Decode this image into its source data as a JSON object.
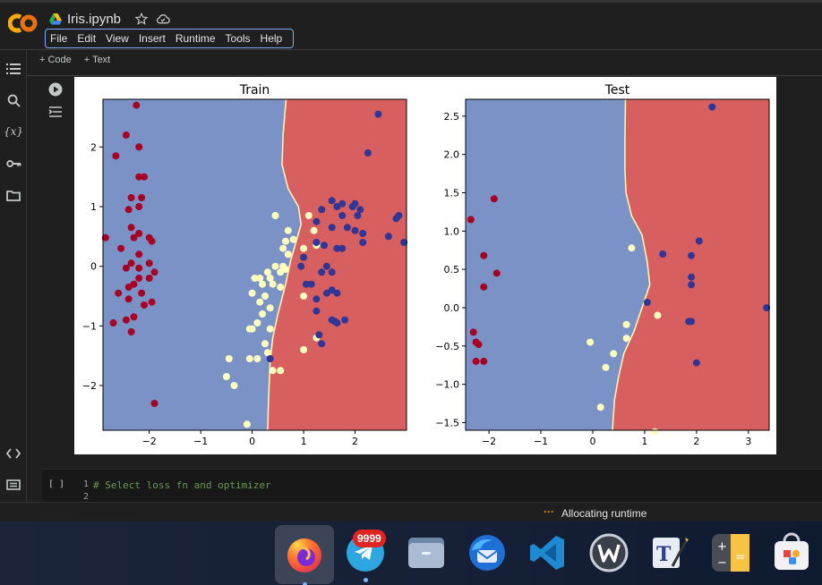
{
  "notebook": {
    "title": "Iris.ipynb"
  },
  "menu": [
    "File",
    "Edit",
    "View",
    "Insert",
    "Runtime",
    "Tools",
    "Help"
  ],
  "toolbar": {
    "code_label": "+ Code",
    "text_label": "+ Text"
  },
  "cell": {
    "run_indicator": "[ ]",
    "lines": [
      {
        "num": "1",
        "text": "# Select loss fn and optimizer"
      },
      {
        "num": "2",
        "text": ""
      }
    ]
  },
  "status": {
    "text": "Allocating runtime"
  },
  "taskbar": {
    "apps": [
      "firefox",
      "telegram",
      "files",
      "thunderbird",
      "vscode",
      "writer",
      "texstudio",
      "calculator",
      "software-store"
    ],
    "telegram_badge": "9999"
  },
  "colors": {
    "blue_region": "#7b92c6",
    "red_region": "#d75f5f",
    "class_0": "#a50026",
    "class_1": "#ffffbf",
    "class_2": "#313695",
    "accent": "#7cacf8",
    "boundary": "#fff2b0"
  },
  "chart_data": [
    {
      "type": "scatter",
      "title": "Train",
      "xlim": [
        -2.9,
        3.0
      ],
      "ylim": [
        -2.75,
        2.8
      ],
      "xticks": [
        "−2",
        "−1",
        "0",
        "1",
        "2"
      ],
      "xtick_values": [
        -2,
        -1,
        0,
        1,
        2
      ],
      "yticks": [
        "−2",
        "−1",
        "0",
        "1",
        "2"
      ],
      "ytick_values": [
        -2,
        -1,
        0,
        1,
        2
      ],
      "boundary": [
        [
          0.66,
          2.8
        ],
        [
          0.6,
          2.2
        ],
        [
          0.58,
          1.7
        ],
        [
          0.7,
          1.3
        ],
        [
          0.9,
          1.0
        ],
        [
          0.95,
          0.7
        ],
        [
          0.85,
          0.4
        ],
        [
          0.75,
          0.1
        ],
        [
          0.65,
          -0.3
        ],
        [
          0.5,
          -0.8
        ],
        [
          0.4,
          -1.2
        ],
        [
          0.35,
          -1.6
        ],
        [
          0.32,
          -2.2
        ],
        [
          0.3,
          -2.75
        ]
      ],
      "series": [
        {
          "class": 0,
          "points": [
            [
              -2.25,
              2.7
            ],
            [
              -2.45,
              2.2
            ],
            [
              -2.2,
              2.0
            ],
            [
              -2.65,
              1.85
            ],
            [
              -2.2,
              1.5
            ],
            [
              -2.1,
              1.5
            ],
            [
              -2.35,
              1.15
            ],
            [
              -2.15,
              1.15
            ],
            [
              -2.2,
              1.0
            ],
            [
              -2.4,
              0.95
            ],
            [
              -2.35,
              0.65
            ],
            [
              -2.2,
              0.55
            ],
            [
              -2.3,
              0.48
            ],
            [
              -2.0,
              0.48
            ],
            [
              -1.95,
              0.42
            ],
            [
              -2.85,
              0.48
            ],
            [
              -2.55,
              0.3
            ],
            [
              -2.2,
              0.2
            ],
            [
              -2.35,
              0.05
            ],
            [
              -2.45,
              -0.03
            ],
            [
              -2.2,
              -0.03
            ],
            [
              -1.9,
              -0.1
            ],
            [
              -2.0,
              0.05
            ],
            [
              -2.2,
              -0.2
            ],
            [
              -2.6,
              -0.45
            ],
            [
              -2.4,
              -0.35
            ],
            [
              -2.3,
              -0.3
            ],
            [
              -2.15,
              -0.45
            ],
            [
              -2.4,
              -0.55
            ],
            [
              -1.95,
              -0.6
            ],
            [
              -2.1,
              -0.65
            ],
            [
              -2.0,
              -0.2
            ],
            [
              -2.3,
              -0.85
            ],
            [
              -2.7,
              -0.95
            ],
            [
              -2.45,
              -0.9
            ],
            [
              -2.35,
              -1.1
            ],
            [
              -1.9,
              -2.3
            ]
          ]
        },
        {
          "class": 1,
          "points": [
            [
              0.45,
              0.85
            ],
            [
              1.1,
              0.85
            ],
            [
              0.7,
              0.6
            ],
            [
              1.2,
              0.6
            ],
            [
              0.65,
              0.42
            ],
            [
              0.8,
              0.45
            ],
            [
              1.0,
              0.3
            ],
            [
              1.25,
              0.35
            ],
            [
              0.6,
              0.3
            ],
            [
              0.7,
              0.2
            ],
            [
              0.6,
              0.0
            ],
            [
              0.65,
              -0.05
            ],
            [
              0.55,
              -0.1
            ],
            [
              0.45,
              0.0
            ],
            [
              0.3,
              -0.1
            ],
            [
              0.05,
              -0.2
            ],
            [
              0.15,
              -0.2
            ],
            [
              0.35,
              -0.2
            ],
            [
              0.4,
              -0.3
            ],
            [
              0.2,
              -0.3
            ],
            [
              0.55,
              -0.35
            ],
            [
              0.0,
              -0.45
            ],
            [
              0.25,
              -0.5
            ],
            [
              1.0,
              -0.5
            ],
            [
              0.15,
              -0.6
            ],
            [
              0.35,
              -0.7
            ],
            [
              0.2,
              -0.8
            ],
            [
              0.1,
              -0.95
            ],
            [
              -0.05,
              -1.05
            ],
            [
              0.0,
              -1.05
            ],
            [
              0.35,
              -1.05
            ],
            [
              0.25,
              -1.3
            ],
            [
              0.3,
              -1.45
            ],
            [
              1.0,
              -1.4
            ],
            [
              1.25,
              -1.2
            ],
            [
              -0.45,
              -1.55
            ],
            [
              -0.05,
              -1.55
            ],
            [
              0.1,
              -1.55
            ],
            [
              0.4,
              -1.75
            ],
            [
              0.55,
              -1.75
            ],
            [
              -0.5,
              -1.85
            ],
            [
              -0.35,
              -2.0
            ],
            [
              -0.1,
              -2.65
            ]
          ]
        },
        {
          "class": 2,
          "points": [
            [
              2.45,
              2.55
            ],
            [
              2.25,
              1.9
            ],
            [
              1.55,
              1.1
            ],
            [
              1.75,
              1.05
            ],
            [
              2.0,
              1.05
            ],
            [
              1.95,
              1.0
            ],
            [
              1.65,
              1.0
            ],
            [
              1.35,
              0.95
            ],
            [
              2.1,
              0.95
            ],
            [
              1.75,
              0.85
            ],
            [
              2.05,
              0.85
            ],
            [
              2.85,
              0.85
            ],
            [
              2.8,
              0.8
            ],
            [
              1.25,
              0.75
            ],
            [
              1.55,
              0.65
            ],
            [
              1.85,
              0.65
            ],
            [
              2.0,
              0.6
            ],
            [
              2.15,
              0.4
            ],
            [
              1.4,
              0.35
            ],
            [
              1.65,
              0.3
            ],
            [
              1.75,
              0.3
            ],
            [
              2.15,
              0.55
            ],
            [
              1.25,
              0.4
            ],
            [
              2.65,
              0.5
            ],
            [
              2.95,
              0.4
            ],
            [
              1.0,
              0.15
            ],
            [
              0.95,
              0.0
            ],
            [
              1.45,
              0.0
            ],
            [
              1.35,
              -0.1
            ],
            [
              1.55,
              -0.1
            ],
            [
              1.05,
              -0.3
            ],
            [
              1.15,
              -0.3
            ],
            [
              1.55,
              -0.4
            ],
            [
              1.45,
              -0.45
            ],
            [
              1.65,
              -0.45
            ],
            [
              1.25,
              -0.55
            ],
            [
              1.25,
              -0.75
            ],
            [
              1.55,
              -0.9
            ],
            [
              1.65,
              -0.95
            ],
            [
              1.8,
              -0.9
            ],
            [
              1.6,
              -0.92
            ],
            [
              1.3,
              -1.15
            ],
            [
              1.35,
              -1.3
            ],
            [
              0.35,
              -1.55
            ]
          ]
        }
      ]
    },
    {
      "type": "scatter",
      "title": "Test",
      "xlim": [
        -2.45,
        3.4
      ],
      "ylim": [
        -1.6,
        2.72
      ],
      "xticks": [
        "−2",
        "−1",
        "0",
        "1",
        "2",
        "3"
      ],
      "xtick_values": [
        -2,
        -1,
        0,
        1,
        2,
        3
      ],
      "yticks": [
        "−1.5",
        "−1.0",
        "−0.5",
        "0.0",
        "0.5",
        "1.0",
        "1.5",
        "2.0",
        "2.5"
      ],
      "ytick_values": [
        -1.5,
        -1.0,
        -0.5,
        0.0,
        0.5,
        1.0,
        1.5,
        2.0,
        2.5
      ],
      "boundary": [
        [
          0.63,
          2.72
        ],
        [
          0.62,
          2.2
        ],
        [
          0.62,
          1.8
        ],
        [
          0.64,
          1.5
        ],
        [
          0.75,
          1.2
        ],
        [
          0.95,
          0.95
        ],
        [
          1.05,
          0.6
        ],
        [
          1.1,
          0.3
        ],
        [
          0.95,
          0.0
        ],
        [
          0.8,
          -0.3
        ],
        [
          0.6,
          -0.6
        ],
        [
          0.5,
          -0.9
        ],
        [
          0.42,
          -1.2
        ],
        [
          0.38,
          -1.6
        ]
      ],
      "series": [
        {
          "class": 0,
          "points": [
            [
              -2.35,
              1.15
            ],
            [
              -1.9,
              1.42
            ],
            [
              -2.3,
              -0.32
            ],
            [
              -2.25,
              -0.45
            ],
            [
              -2.2,
              -0.48
            ],
            [
              -2.25,
              -0.7
            ],
            [
              -2.1,
              -0.7
            ],
            [
              -2.1,
              0.68
            ],
            [
              -2.1,
              0.27
            ],
            [
              -1.85,
              0.45
            ]
          ]
        },
        {
          "class": 1,
          "points": [
            [
              0.75,
              0.78
            ],
            [
              1.25,
              -0.1
            ],
            [
              0.65,
              -0.22
            ],
            [
              0.4,
              -0.6
            ],
            [
              0.65,
              -0.4
            ],
            [
              0.25,
              -0.78
            ],
            [
              0.15,
              -1.3
            ],
            [
              -0.05,
              -0.45
            ],
            [
              1.2,
              -1.62
            ]
          ]
        },
        {
          "class": 2,
          "points": [
            [
              2.3,
              2.62
            ],
            [
              1.35,
              0.7
            ],
            [
              2.05,
              0.87
            ],
            [
              1.9,
              0.68
            ],
            [
              1.9,
              0.4
            ],
            [
              1.9,
              0.3
            ],
            [
              1.05,
              0.07
            ],
            [
              1.85,
              -0.18
            ],
            [
              1.9,
              -0.18
            ],
            [
              2.0,
              -0.72
            ],
            [
              3.35,
              0.0
            ]
          ]
        }
      ]
    }
  ]
}
